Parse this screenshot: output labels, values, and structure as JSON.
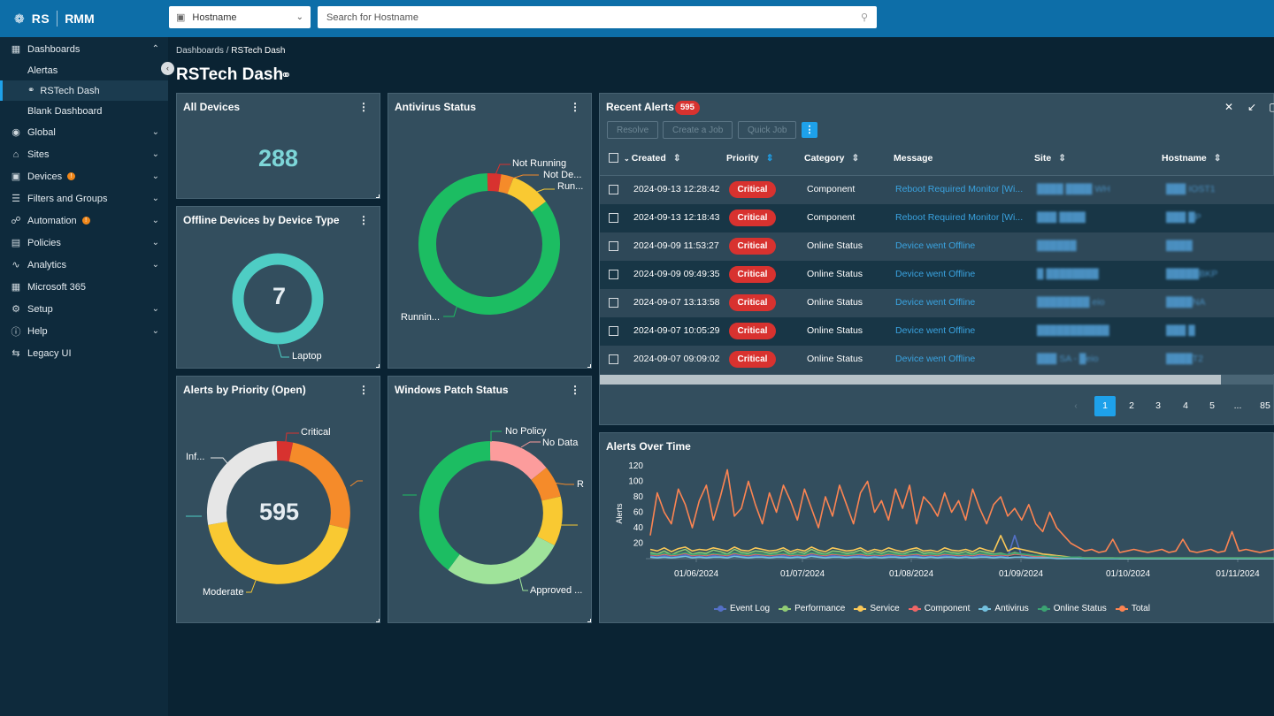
{
  "header": {
    "logo_text": "RS",
    "app_name": "RMM",
    "search_type": "Hostname",
    "search_placeholder": "Search for Hostname"
  },
  "sidebar": {
    "items": [
      {
        "label": "Dashboards",
        "icon": "grid-icon",
        "expanded": true
      },
      {
        "label": "Alertas",
        "sub": true
      },
      {
        "label": "RSTech Dash",
        "sub": true,
        "active": true
      },
      {
        "label": "Blank Dashboard",
        "sub": true
      },
      {
        "label": "Global",
        "icon": "globe-icon"
      },
      {
        "label": "Sites",
        "icon": "home-icon"
      },
      {
        "label": "Devices",
        "icon": "monitor-icon",
        "badge": true
      },
      {
        "label": "Filters and Groups",
        "icon": "filter-icon"
      },
      {
        "label": "Automation",
        "icon": "automation-icon",
        "badge": true
      },
      {
        "label": "Policies",
        "icon": "document-icon"
      },
      {
        "label": "Analytics",
        "icon": "chart-icon"
      },
      {
        "label": "Microsoft 365",
        "icon": "windows-icon"
      },
      {
        "label": "Setup",
        "icon": "gear-icon"
      },
      {
        "label": "Help",
        "icon": "help-icon"
      },
      {
        "label": "Legacy UI",
        "icon": "swap-icon"
      }
    ]
  },
  "breadcrumb": {
    "parent": "Dashboards /",
    "current": "RSTech Dash"
  },
  "page_title": "RSTech Dash",
  "widgets": {
    "all_devices": {
      "title": "All Devices",
      "value": "288"
    },
    "antivirus": {
      "title": "Antivirus Status",
      "labels": [
        "Not Running",
        "Not De...",
        "Run...",
        "Runnin..."
      ]
    },
    "offline": {
      "title": "Offline Devices by Device Type",
      "value": "7",
      "label": "Laptop"
    },
    "alerts_priority": {
      "title": "Alerts by Priority (Open)",
      "value": "595",
      "labels": [
        "Critical",
        "Inf...",
        "Moderate"
      ]
    },
    "patch": {
      "title": "Windows Patch Status",
      "labels": [
        "No Policy",
        "No Data",
        "R",
        "Approved ..."
      ]
    }
  },
  "recent_alerts": {
    "title": "Recent Alerts",
    "count": "595",
    "buttons": [
      "Resolve",
      "Create a Job",
      "Quick Job"
    ],
    "columns": [
      "Created",
      "Priority",
      "Category",
      "Message",
      "Site",
      "Hostname"
    ],
    "rows": [
      {
        "created": "2024-09-13 12:28:42",
        "priority": "Critical",
        "category": "Component",
        "message": "Reboot Required Monitor [Wi...",
        "site": "████ ████ WH",
        "host": "███ IOST1"
      },
      {
        "created": "2024-09-13 12:18:43",
        "priority": "Critical",
        "category": "Component",
        "message": "Reboot Required Monitor [Wi...",
        "site": "███ ████",
        "host": "███ █P"
      },
      {
        "created": "2024-09-09 11:53:27",
        "priority": "Critical",
        "category": "Online Status",
        "message": "Device went Offline",
        "site": "██████",
        "host": "████"
      },
      {
        "created": "2024-09-09 09:49:35",
        "priority": "Critical",
        "category": "Online Status",
        "message": "Device went Offline",
        "site": "█ ████████",
        "host": "█████BKP"
      },
      {
        "created": "2024-09-07 13:13:58",
        "priority": "Critical",
        "category": "Online Status",
        "message": "Device went Offline",
        "site": "████████ eio",
        "host": "████NA"
      },
      {
        "created": "2024-09-07 10:05:29",
        "priority": "Critical",
        "category": "Online Status",
        "message": "Device went Offline",
        "site": "███████████",
        "host": "███ █"
      },
      {
        "created": "2024-09-07 09:09:02",
        "priority": "Critical",
        "category": "Online Status",
        "message": "Device went Offline",
        "site": "███ SA - █eio",
        "host": "████T2"
      }
    ],
    "pages": [
      "1",
      "2",
      "3",
      "4",
      "5",
      "...",
      "85"
    ]
  },
  "colors": {
    "critical": "#d8322f",
    "accent": "#1ea1ea",
    "panel": "#334e5e"
  },
  "chart_data": {
    "type": "line",
    "title": "Alerts Over Time",
    "ylabel": "Alerts",
    "ylim": [
      0,
      120
    ],
    "yticks": [
      20,
      40,
      60,
      80,
      100,
      120
    ],
    "xticks": [
      "01/06/2024",
      "01/07/2024",
      "01/08/2024",
      "01/09/2024",
      "01/10/2024",
      "01/11/2024"
    ],
    "series": [
      {
        "name": "Event Log",
        "color": "#5470c6",
        "values": [
          3,
          2,
          4,
          2,
          3,
          5,
          2,
          3,
          2,
          4,
          3,
          2,
          5,
          3,
          2,
          4,
          3,
          2,
          3,
          4,
          2,
          3,
          2,
          5,
          3,
          2,
          4,
          3,
          2,
          3,
          4,
          2,
          3,
          2,
          4,
          3,
          2,
          3,
          4,
          2,
          3,
          2,
          4,
          3,
          2,
          3,
          2,
          4,
          3,
          2,
          3,
          2,
          30,
          3,
          2,
          3,
          2,
          2,
          1,
          1,
          1,
          0,
          0,
          0,
          0,
          0,
          0,
          0,
          0,
          0,
          0,
          0,
          0,
          0,
          0,
          0,
          0,
          0,
          0,
          0,
          0,
          0,
          0,
          0,
          0,
          0,
          0,
          0,
          0,
          0
        ]
      },
      {
        "name": "Performance",
        "color": "#91cc75",
        "values": [
          8,
          6,
          10,
          5,
          9,
          12,
          6,
          8,
          7,
          11,
          9,
          6,
          12,
          8,
          7,
          10,
          9,
          7,
          8,
          11,
          6,
          9,
          7,
          12,
          8,
          6,
          10,
          9,
          7,
          8,
          11,
          6,
          9,
          7,
          10,
          8,
          6,
          9,
          11,
          7,
          8,
          6,
          10,
          8,
          7,
          9,
          6,
          10,
          8,
          6,
          7,
          5,
          8,
          6,
          5,
          4,
          3,
          2,
          2,
          1,
          1,
          1,
          0,
          0,
          0,
          0,
          0,
          0,
          0,
          0,
          0,
          0,
          0,
          0,
          0,
          0,
          0,
          0,
          0,
          0,
          0,
          0,
          0,
          0,
          0,
          0,
          0,
          0,
          0,
          0
        ]
      },
      {
        "name": "Service",
        "color": "#fac858",
        "values": [
          12,
          10,
          14,
          9,
          13,
          15,
          10,
          12,
          11,
          14,
          12,
          10,
          15,
          11,
          10,
          14,
          12,
          10,
          11,
          14,
          9,
          12,
          10,
          15,
          11,
          9,
          14,
          12,
          10,
          11,
          14,
          9,
          12,
          10,
          14,
          11,
          9,
          12,
          14,
          10,
          11,
          9,
          14,
          11,
          10,
          12,
          9,
          14,
          11,
          9,
          30,
          10,
          14,
          12,
          10,
          8,
          6,
          5,
          4,
          3,
          2,
          2,
          1,
          1,
          1,
          1,
          1,
          0,
          0,
          0,
          0,
          0,
          0,
          0,
          0,
          0,
          0,
          0,
          0,
          0,
          0,
          0,
          0,
          0,
          0,
          0,
          0,
          0,
          0,
          0
        ]
      },
      {
        "name": "Component",
        "color": "#ee6666",
        "values": [
          5,
          4,
          6,
          4,
          5,
          7,
          4,
          5,
          4,
          6,
          5,
          4,
          7,
          5,
          4,
          6,
          5,
          4,
          5,
          6,
          4,
          5,
          4,
          7,
          5,
          4,
          6,
          5,
          4,
          5,
          6,
          4,
          5,
          4,
          6,
          5,
          4,
          5,
          6,
          4,
          5,
          4,
          6,
          5,
          4,
          5,
          4,
          6,
          5,
          4,
          5,
          4,
          6,
          5,
          4,
          3,
          3,
          2,
          2,
          2,
          1,
          1,
          1,
          1,
          1,
          1,
          1,
          1,
          1,
          1,
          1,
          1,
          1,
          1,
          1,
          1,
          1,
          1,
          1,
          1,
          1,
          1,
          1,
          1,
          1,
          1,
          1,
          1,
          1,
          1
        ]
      },
      {
        "name": "Antivirus",
        "color": "#73c0de",
        "values": [
          2,
          1,
          2,
          1,
          2,
          3,
          1,
          2,
          1,
          2,
          2,
          1,
          3,
          2,
          1,
          2,
          2,
          1,
          2,
          2,
          1,
          2,
          1,
          3,
          2,
          1,
          2,
          2,
          1,
          2,
          2,
          1,
          2,
          1,
          2,
          2,
          1,
          2,
          2,
          1,
          2,
          1,
          2,
          2,
          1,
          2,
          1,
          2,
          2,
          1,
          2,
          1,
          2,
          2,
          1,
          1,
          1,
          1,
          0,
          0,
          0,
          0,
          0,
          0,
          0,
          0,
          0,
          0,
          0,
          0,
          0,
          0,
          0,
          0,
          0,
          0,
          0,
          0,
          0,
          0,
          0,
          0,
          0,
          0,
          0,
          0,
          0,
          0,
          0,
          0
        ]
      },
      {
        "name": "Online Status",
        "color": "#3ba272",
        "values": [
          6,
          5,
          7,
          5,
          6,
          8,
          5,
          6,
          5,
          7,
          6,
          5,
          8,
          6,
          5,
          7,
          6,
          5,
          6,
          7,
          5,
          6,
          5,
          8,
          6,
          5,
          7,
          6,
          5,
          6,
          7,
          5,
          6,
          5,
          7,
          6,
          5,
          6,
          7,
          5,
          6,
          5,
          7,
          6,
          5,
          6,
          5,
          7,
          6,
          5,
          6,
          5,
          7,
          6,
          5,
          4,
          4,
          3,
          3,
          2,
          2,
          2,
          1,
          1,
          1,
          1,
          1,
          1,
          1,
          1,
          1,
          1,
          1,
          1,
          1,
          1,
          1,
          1,
          1,
          1,
          1,
          1,
          1,
          1,
          1,
          1,
          1,
          1,
          1,
          1
        ]
      },
      {
        "name": "Total",
        "color": "#fc8452",
        "values": [
          30,
          85,
          60,
          45,
          90,
          70,
          40,
          75,
          95,
          50,
          80,
          115,
          55,
          65,
          100,
          70,
          45,
          85,
          60,
          95,
          75,
          50,
          90,
          65,
          40,
          80,
          55,
          95,
          70,
          45,
          85,
          100,
          60,
          75,
          50,
          90,
          65,
          95,
          45,
          80,
          70,
          55,
          85,
          60,
          75,
          50,
          90,
          65,
          45,
          70,
          80,
          55,
          65,
          50,
          70,
          45,
          35,
          60,
          40,
          30,
          20,
          15,
          10,
          12,
          8,
          10,
          25,
          8,
          10,
          12,
          10,
          8,
          10,
          12,
          8,
          10,
          25,
          10,
          8,
          10,
          12,
          8,
          10,
          35,
          10,
          12,
          10,
          8,
          10,
          12
        ]
      }
    ]
  }
}
